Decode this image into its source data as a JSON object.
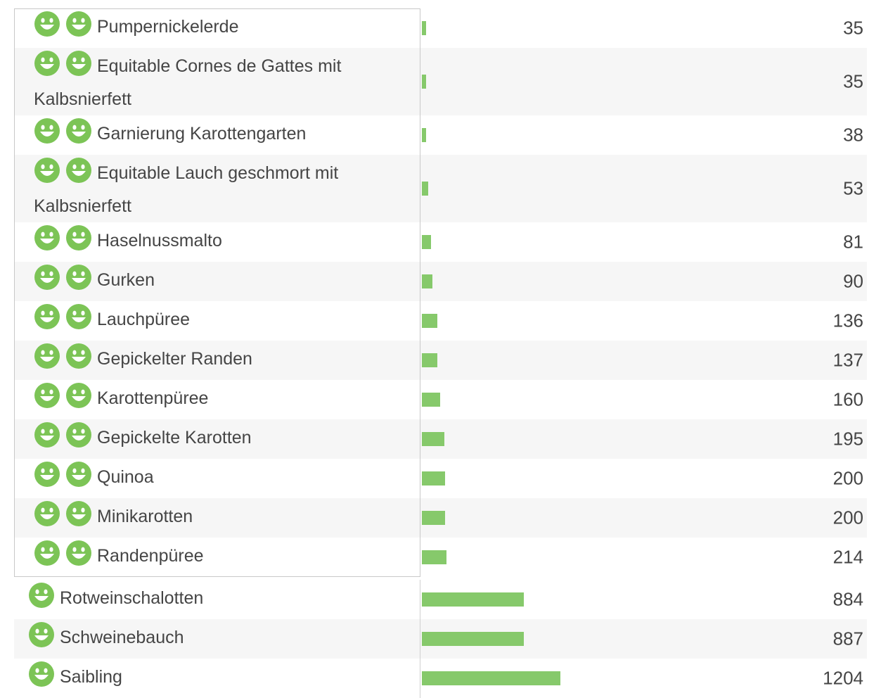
{
  "groups": [
    {
      "rows": [
        {
          "label": "Pumpernickelerde",
          "smileys": 2,
          "value": 35
        },
        {
          "label": "Equitable Cornes de Gattes mit Kalbsnierfett",
          "smileys": 2,
          "value": 35
        },
        {
          "label": "Garnierung Karottengarten",
          "smileys": 2,
          "value": 38
        },
        {
          "label": "Equitable Lauch geschmort mit Kalbsnierfett",
          "smileys": 2,
          "value": 53
        },
        {
          "label": "Haselnussmalto",
          "smileys": 2,
          "value": 81
        },
        {
          "label": "Gurken",
          "smileys": 2,
          "value": 90
        },
        {
          "label": "Lauchpüree",
          "smileys": 2,
          "value": 136
        },
        {
          "label": "Gepickelter Randen",
          "smileys": 2,
          "value": 137
        },
        {
          "label": "Karottenpüree",
          "smileys": 2,
          "value": 160
        },
        {
          "label": "Gepickelte Karotten",
          "smileys": 2,
          "value": 195
        },
        {
          "label": "Quinoa",
          "smileys": 2,
          "value": 200
        },
        {
          "label": "Minikarotten",
          "smileys": 2,
          "value": 200
        },
        {
          "label": "Randenpüree",
          "smileys": 2,
          "value": 214
        }
      ]
    },
    {
      "rows": [
        {
          "label": "Rotweinschalotten",
          "smileys": 1,
          "value": 884
        },
        {
          "label": "Schweinebauch",
          "smileys": 1,
          "value": 887
        },
        {
          "label": "Saibling",
          "smileys": 1,
          "value": 1204
        }
      ]
    }
  ]
}
